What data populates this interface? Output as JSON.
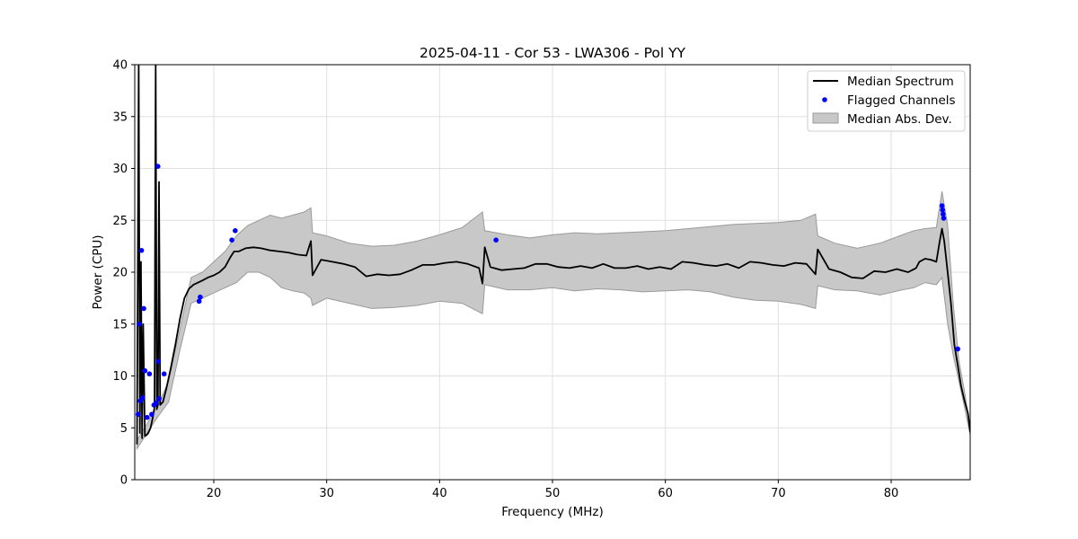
{
  "chart_data": {
    "type": "line",
    "title": "2025-04-11 - Cor 53 - LWA306 - Pol YY",
    "xlabel": "Frequency (MHz)",
    "ylabel": "Power (CPU)",
    "xlim": [
      13.0,
      87.0
    ],
    "ylim": [
      0,
      40
    ],
    "xticks": [
      20,
      30,
      40,
      50,
      60,
      70,
      80
    ],
    "yticks": [
      0,
      5,
      10,
      15,
      20,
      25,
      30,
      35,
      40
    ],
    "grid": true,
    "legend_position": "top-right",
    "legend": [
      {
        "label": "Median Spectrum",
        "kind": "line"
      },
      {
        "label": "Flagged Channels",
        "kind": "marker"
      },
      {
        "label": "Median Abs. Dev.",
        "kind": "patch"
      }
    ],
    "colors": {
      "median": "#000000",
      "flagged": "#0000ff",
      "band_fill": "#c8c8c8",
      "band_edge": "#9a9a9a",
      "grid": "#e0e0e0"
    },
    "series": [
      {
        "name": "Median Spectrum",
        "x": [
          13.2,
          13.35,
          13.45,
          13.55,
          13.65,
          13.75,
          13.9,
          14.05,
          14.2,
          14.4,
          14.6,
          14.75,
          14.85,
          14.95,
          15.05,
          15.15,
          15.25,
          15.5,
          15.8,
          16.2,
          16.6,
          17.0,
          17.4,
          17.8,
          18.2,
          18.6,
          19.0,
          19.5,
          20.0,
          20.5,
          21.0,
          21.5,
          21.8,
          22.2,
          22.8,
          23.5,
          24.2,
          25.0,
          25.8,
          26.6,
          27.4,
          28.2,
          28.6,
          28.75,
          29.5,
          30.5,
          31.5,
          32.5,
          33.5,
          34.5,
          35.5,
          36.5,
          37.5,
          38.5,
          39.5,
          40.5,
          41.5,
          42.5,
          43.5,
          43.8,
          44.0,
          44.5,
          45.5,
          46.5,
          47.5,
          48.5,
          49.5,
          50.5,
          51.5,
          52.5,
          53.5,
          54.5,
          55.5,
          56.5,
          57.5,
          58.5,
          59.5,
          60.5,
          61.5,
          62.5,
          63.5,
          64.5,
          65.5,
          66.5,
          67.5,
          68.5,
          69.5,
          70.5,
          71.5,
          72.5,
          73.3,
          73.5,
          74.5,
          75.5,
          76.5,
          77.5,
          78.5,
          79.5,
          80.5,
          81.5,
          82.2,
          82.5,
          83.0,
          83.5,
          84.0,
          84.3,
          84.5,
          84.7,
          85.0,
          85.3,
          85.6,
          85.9,
          86.2,
          86.5,
          86.8,
          87.0
        ],
        "values": [
          3.4,
          40.0,
          4.5,
          21.0,
          4.0,
          15.0,
          4.2,
          4.3,
          4.5,
          5.0,
          6.0,
          7.0,
          40.0,
          6.8,
          7.2,
          28.7,
          7.2,
          7.5,
          8.8,
          10.8,
          13.0,
          15.5,
          17.5,
          18.4,
          18.8,
          19.0,
          19.2,
          19.5,
          19.7,
          20.0,
          20.5,
          21.5,
          22.0,
          22.0,
          22.3,
          22.4,
          22.3,
          22.1,
          22.0,
          21.9,
          21.7,
          21.6,
          23.0,
          19.7,
          21.2,
          21.0,
          20.8,
          20.5,
          19.6,
          19.8,
          19.7,
          19.8,
          20.2,
          20.7,
          20.7,
          20.9,
          21.0,
          20.8,
          20.4,
          18.9,
          22.4,
          20.5,
          20.2,
          20.3,
          20.4,
          20.8,
          20.8,
          20.5,
          20.4,
          20.6,
          20.4,
          20.8,
          20.4,
          20.4,
          20.6,
          20.3,
          20.5,
          20.3,
          21.0,
          20.9,
          20.7,
          20.6,
          20.8,
          20.4,
          21.0,
          20.9,
          20.7,
          20.6,
          20.9,
          20.8,
          19.8,
          22.2,
          20.3,
          20.0,
          19.5,
          19.4,
          20.1,
          20.0,
          20.3,
          20.0,
          20.4,
          21.0,
          21.3,
          21.2,
          21.0,
          23.0,
          24.2,
          23.0,
          20.0,
          17.0,
          13.0,
          11.0,
          9.0,
          7.6,
          6.4,
          4.6
        ]
      },
      {
        "name": "Median Abs. Dev.",
        "x": [
          13.2,
          15.0,
          16.0,
          17.0,
          18.0,
          19.0,
          20.0,
          21.0,
          22.0,
          23.0,
          24.0,
          25.0,
          26.0,
          27.0,
          28.0,
          28.6,
          28.75,
          30.0,
          32.0,
          34.0,
          36.0,
          38.0,
          40.0,
          42.0,
          43.8,
          44.0,
          46.0,
          48.0,
          50.0,
          52.0,
          54.0,
          56.0,
          58.0,
          60.0,
          62.0,
          64.0,
          66.0,
          68.0,
          70.0,
          72.0,
          73.3,
          73.5,
          75.0,
          77.0,
          79.0,
          81.0,
          82.0,
          83.0,
          84.0,
          84.5,
          85.0,
          85.5,
          86.0,
          86.5,
          87.0
        ],
        "low": [
          3.0,
          6.0,
          7.5,
          12.5,
          17.0,
          17.5,
          18.0,
          18.5,
          19.0,
          20.0,
          20.0,
          19.5,
          18.5,
          18.2,
          18.0,
          17.5,
          16.8,
          17.5,
          17.0,
          16.5,
          16.6,
          16.8,
          17.2,
          17.0,
          16.0,
          18.8,
          18.3,
          18.3,
          18.5,
          18.2,
          18.4,
          18.3,
          18.1,
          18.2,
          18.3,
          18.1,
          17.6,
          17.3,
          17.2,
          16.9,
          16.5,
          18.7,
          18.3,
          18.2,
          17.8,
          18.3,
          18.5,
          19.0,
          18.8,
          19.5,
          15.0,
          12.0,
          9.5,
          7.0,
          4.3
        ],
        "high": [
          3.8,
          7.0,
          9.5,
          14.5,
          19.5,
          20.0,
          21.0,
          22.0,
          23.5,
          24.5,
          25.0,
          25.5,
          25.2,
          25.5,
          25.8,
          26.2,
          23.8,
          23.5,
          22.8,
          22.5,
          22.6,
          23.0,
          23.6,
          24.3,
          25.8,
          24.0,
          23.6,
          23.3,
          23.6,
          23.8,
          23.7,
          23.8,
          23.9,
          24.0,
          24.2,
          24.4,
          24.6,
          24.7,
          24.8,
          25.0,
          25.6,
          23.5,
          22.8,
          22.3,
          22.8,
          23.6,
          24.0,
          24.2,
          24.3,
          27.8,
          24.5,
          17.0,
          11.5,
          8.5,
          4.9
        ]
      },
      {
        "name": "Flagged Channels",
        "x": [
          13.3,
          13.4,
          13.5,
          13.6,
          13.7,
          13.8,
          13.9,
          14.1,
          14.3,
          14.5,
          14.7,
          14.9,
          15.05,
          15.1,
          15.15,
          15.6,
          18.7,
          18.8,
          21.6,
          21.9,
          45.0,
          84.5,
          84.55,
          84.6,
          84.65,
          85.9
        ],
        "values": [
          6.3,
          15.0,
          7.6,
          22.1,
          7.9,
          16.5,
          10.5,
          6.0,
          10.2,
          6.3,
          7.2,
          7.4,
          30.2,
          11.4,
          7.8,
          10.2,
          17.2,
          17.6,
          23.1,
          24.0,
          23.1,
          26.4,
          26.0,
          25.6,
          25.2,
          12.6
        ]
      }
    ]
  }
}
